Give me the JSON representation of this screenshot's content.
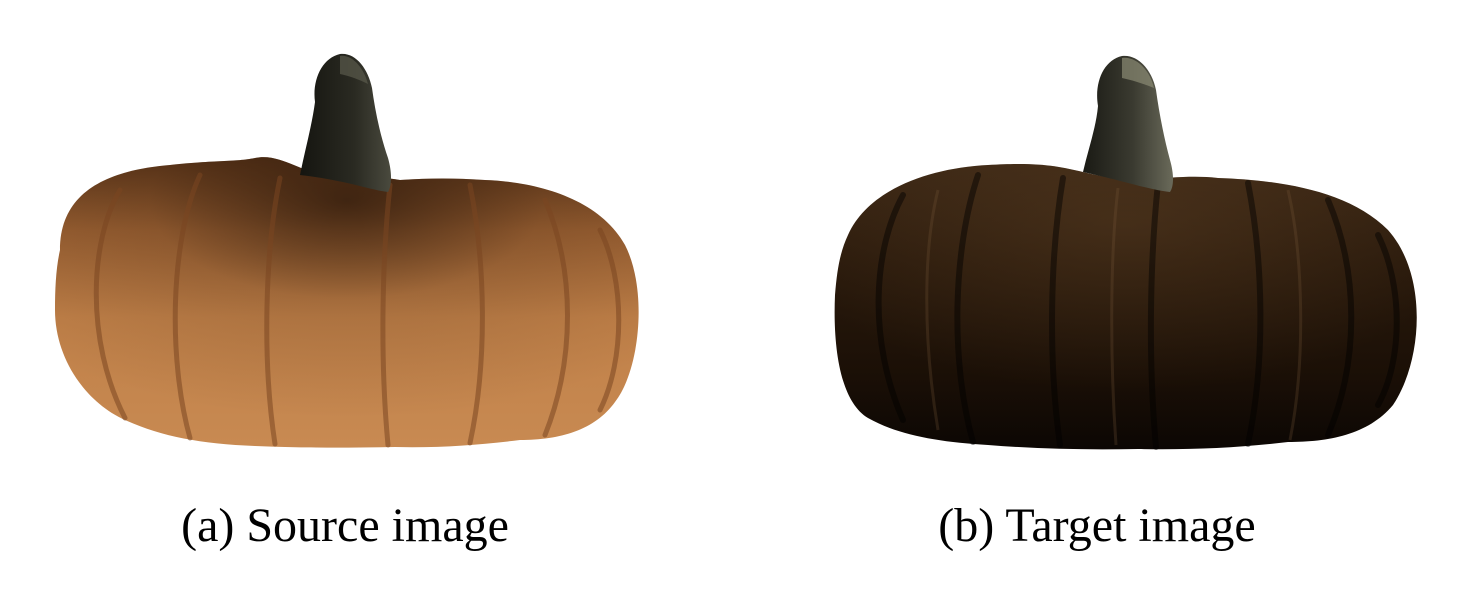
{
  "figure": {
    "panels": [
      {
        "caption": "(a) Source image"
      },
      {
        "caption": "(b) Target image"
      }
    ]
  },
  "colors": {
    "background": "#ffffff",
    "source_pumpkin_base": "#b8763e",
    "source_pumpkin_dark": "#3a2412",
    "target_pumpkin_base": "#2b1a0d",
    "target_pumpkin_dark": "#0a0603",
    "stem_dark": "#1a1a14"
  }
}
